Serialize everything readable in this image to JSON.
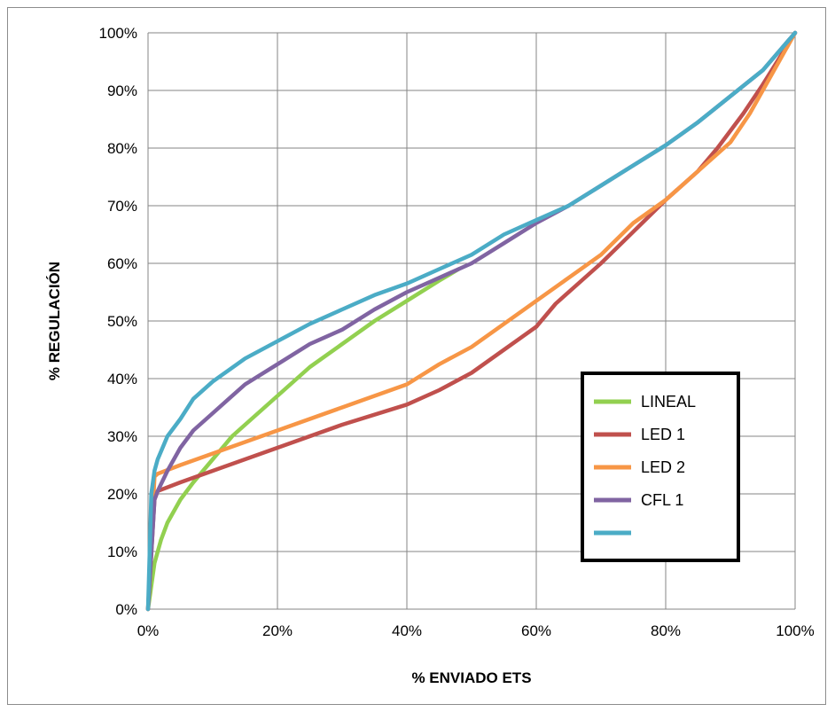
{
  "chart_data": {
    "type": "line",
    "title": "",
    "xlabel": "% ENVIADO ETS",
    "ylabel": "% REGULACIÓN",
    "xlim": [
      0,
      100
    ],
    "ylim": [
      0,
      100
    ],
    "x_ticks": [
      "0%",
      "20%",
      "40%",
      "60%",
      "80%",
      "100%"
    ],
    "y_ticks": [
      "0%",
      "10%",
      "20%",
      "30%",
      "40%",
      "50%",
      "60%",
      "70%",
      "80%",
      "90%",
      "100%"
    ],
    "grid": true,
    "legend_position": "right",
    "series": [
      {
        "name": "LINEAL",
        "color": "#92d050",
        "x": [
          0,
          1,
          2,
          3,
          4,
          5,
          7,
          10,
          13,
          17,
          20,
          25,
          30,
          35,
          40,
          45,
          48
        ],
        "y": [
          0,
          8,
          12,
          15,
          17,
          19,
          22,
          26,
          30,
          34,
          37,
          42,
          46,
          50,
          53.5,
          57,
          59
        ]
      },
      {
        "name": "LED 1",
        "color": "#c0504d",
        "x": [
          0,
          1,
          1.5,
          5,
          10,
          20,
          30,
          40,
          45,
          50,
          55,
          60,
          63,
          66,
          70,
          75,
          80,
          85,
          88,
          92,
          95,
          100
        ],
        "y": [
          0,
          19,
          20.5,
          22,
          24,
          28,
          32,
          35.5,
          38,
          41,
          45,
          49,
          53,
          56,
          60,
          65.5,
          71,
          76,
          80,
          86,
          91,
          100
        ]
      },
      {
        "name": "LED 2",
        "color": "#f79646",
        "x": [
          0,
          1,
          1.5,
          5,
          10,
          20,
          30,
          40,
          45,
          50,
          55,
          60,
          65,
          70,
          75,
          80,
          85,
          90,
          93,
          96,
          100
        ],
        "y": [
          0,
          23,
          23.5,
          25,
          27,
          31,
          35,
          39,
          42.5,
          45.5,
          49.5,
          53.5,
          57.5,
          61.5,
          67,
          71,
          76,
          81,
          86,
          92,
          100
        ]
      },
      {
        "name": "CFL 1",
        "color": "#8064a2",
        "x": [
          0,
          1,
          1.5,
          3,
          5,
          7,
          10,
          15,
          20,
          25,
          30,
          35,
          40,
          45,
          50,
          55,
          60,
          65,
          70,
          75,
          80,
          85,
          90,
          95,
          100
        ],
        "y": [
          0,
          19,
          20.5,
          24,
          28,
          31,
          34,
          39,
          42.5,
          46,
          48.5,
          52,
          55,
          57.5,
          60,
          63.5,
          67,
          70,
          73.5,
          77,
          80.5,
          84.5,
          89,
          93.5,
          100
        ]
      },
      {
        "name": "",
        "color": "#4bacc6",
        "x": [
          0,
          0.5,
          1,
          1.5,
          3,
          5,
          7,
          10,
          15,
          20,
          25,
          30,
          35,
          40,
          45,
          50,
          55,
          60,
          65,
          70,
          75,
          80,
          85,
          90,
          95,
          100
        ],
        "y": [
          0,
          20,
          24,
          26,
          30,
          33,
          36.5,
          39.5,
          43.5,
          46.5,
          49.5,
          52,
          54.5,
          56.5,
          59,
          61.5,
          65,
          67.5,
          70,
          73.5,
          77,
          80.5,
          84.5,
          89,
          93.5,
          100
        ]
      }
    ]
  }
}
